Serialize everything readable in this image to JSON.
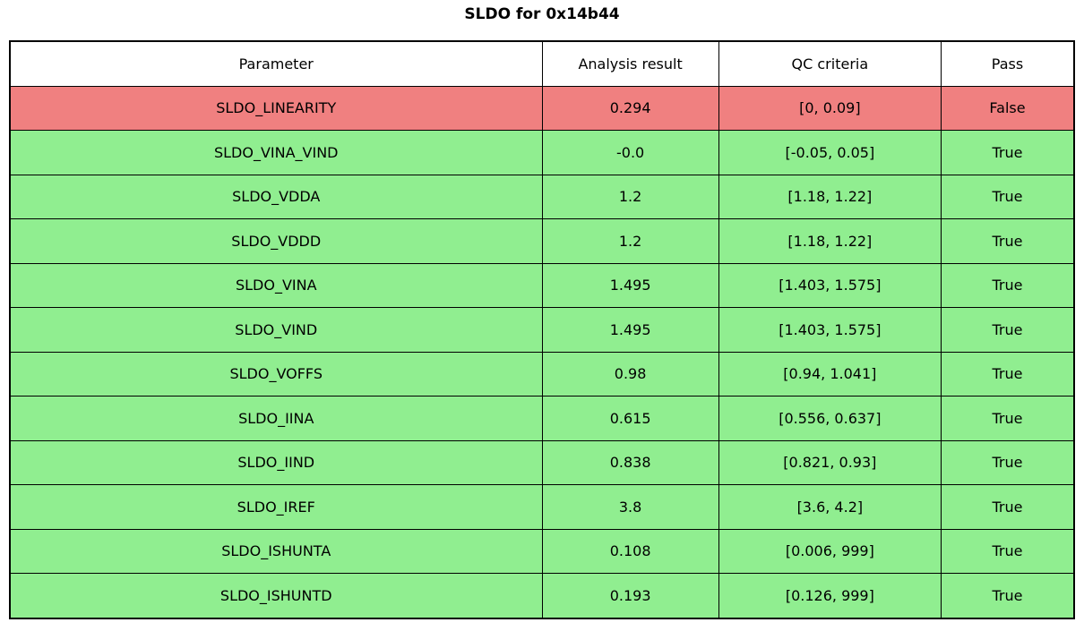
{
  "title": "SLDO for 0x14b44",
  "chart_data": {
    "type": "table",
    "title": "SLDO for 0x14b44",
    "columns": [
      "Parameter",
      "Analysis result",
      "QC criteria",
      "Pass"
    ],
    "rows": [
      {
        "parameter": "SLDO_LINEARITY",
        "result": "0.294",
        "criteria": "[0, 0.09]",
        "pass": "False"
      },
      {
        "parameter": "SLDO_VINA_VIND",
        "result": "-0.0",
        "criteria": "[-0.05, 0.05]",
        "pass": "True"
      },
      {
        "parameter": "SLDO_VDDA",
        "result": "1.2",
        "criteria": "[1.18, 1.22]",
        "pass": "True"
      },
      {
        "parameter": "SLDO_VDDD",
        "result": "1.2",
        "criteria": "[1.18, 1.22]",
        "pass": "True"
      },
      {
        "parameter": "SLDO_VINA",
        "result": "1.495",
        "criteria": "[1.403, 1.575]",
        "pass": "True"
      },
      {
        "parameter": "SLDO_VIND",
        "result": "1.495",
        "criteria": "[1.403, 1.575]",
        "pass": "True"
      },
      {
        "parameter": "SLDO_VOFFS",
        "result": "0.98",
        "criteria": "[0.94, 1.041]",
        "pass": "True"
      },
      {
        "parameter": "SLDO_IINA",
        "result": "0.615",
        "criteria": "[0.556, 0.637]",
        "pass": "True"
      },
      {
        "parameter": "SLDO_IIND",
        "result": "0.838",
        "criteria": "[0.821, 0.93]",
        "pass": "True"
      },
      {
        "parameter": "SLDO_IREF",
        "result": "3.8",
        "criteria": "[3.6, 4.2]",
        "pass": "True"
      },
      {
        "parameter": "SLDO_ISHUNTA",
        "result": "0.108",
        "criteria": "[0.006, 999]",
        "pass": "True"
      },
      {
        "parameter": "SLDO_ISHUNTD",
        "result": "0.193",
        "criteria": "[0.126, 999]",
        "pass": "True"
      }
    ],
    "colors": {
      "fail_row": "#f08080",
      "pass_row": "#90ee90",
      "header_bg": "#ffffff",
      "border": "#000000"
    },
    "layout": {
      "column_widths_pct": [
        50.0,
        16.6,
        20.9,
        12.5
      ],
      "legend_position": "none",
      "grid": "full-borders"
    }
  }
}
